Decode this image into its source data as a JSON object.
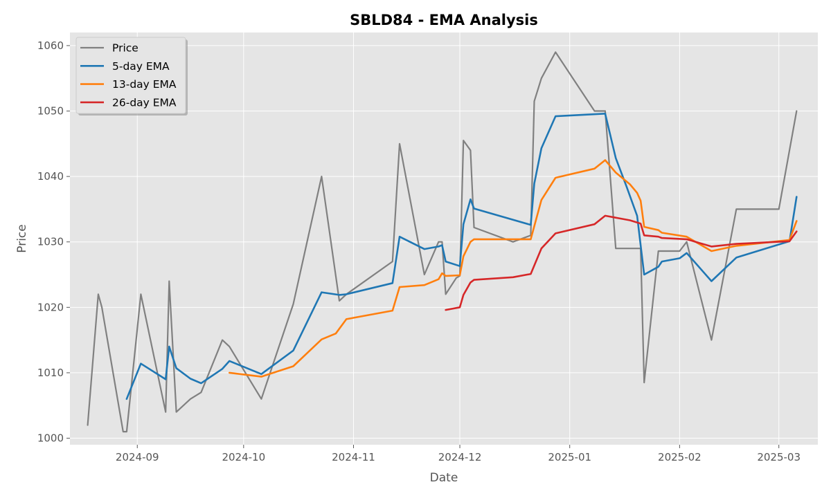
{
  "chart_data": {
    "type": "line",
    "title": "SBLD84 - EMA Analysis",
    "xlabel": "Date",
    "ylabel": "Price",
    "x_range": [
      "2024-08-13",
      "2025-03-12"
    ],
    "ylim": [
      999,
      1062
    ],
    "grid": true,
    "legend_position": "top-left",
    "x_ticks": [
      "2024-09-01",
      "2024-10-01",
      "2024-11-01",
      "2024-12-01",
      "2025-01-01",
      "2025-02-01",
      "2025-03-01"
    ],
    "x_tick_labels": [
      "2024-09",
      "2024-10",
      "2024-11",
      "2024-12",
      "2025-01",
      "2025-02",
      "2025-03"
    ],
    "y_ticks": [
      1000,
      1010,
      1020,
      1030,
      1040,
      1050,
      1060
    ],
    "series": [
      {
        "name": "Price",
        "color": "#808080",
        "points": [
          [
            "2024-08-18",
            1002
          ],
          [
            "2024-08-21",
            1022
          ],
          [
            "2024-08-22",
            1020
          ],
          [
            "2024-08-28",
            1001
          ],
          [
            "2024-08-29",
            1001
          ],
          [
            "2024-09-02",
            1022
          ],
          [
            "2024-09-09",
            1004
          ],
          [
            "2024-09-10",
            1024
          ],
          [
            "2024-09-12",
            1004
          ],
          [
            "2024-09-16",
            1006
          ],
          [
            "2024-09-19",
            1007
          ],
          [
            "2024-09-25",
            1015
          ],
          [
            "2024-09-27",
            1014
          ],
          [
            "2024-10-06",
            1006
          ],
          [
            "2024-10-15",
            1020.5
          ],
          [
            "2024-10-23",
            1040
          ],
          [
            "2024-10-28",
            1021
          ],
          [
            "2024-10-30",
            1022
          ],
          [
            "2024-11-12",
            1027
          ],
          [
            "2024-11-14",
            1045
          ],
          [
            "2024-11-21",
            1025
          ],
          [
            "2024-11-25",
            1030
          ],
          [
            "2024-11-26",
            1030
          ],
          [
            "2024-11-27",
            1022
          ],
          [
            "2024-11-30",
            1024.5
          ],
          [
            "2024-12-01",
            1024.8
          ],
          [
            "2024-12-02",
            1045.5
          ],
          [
            "2024-12-04",
            1044
          ],
          [
            "2024-12-05",
            1032.2
          ],
          [
            "2024-12-16",
            1030
          ],
          [
            "2024-12-21",
            1031
          ],
          [
            "2024-12-22",
            1051.5
          ],
          [
            "2024-12-24",
            1055
          ],
          [
            "2024-12-28",
            1059
          ],
          [
            "2025-01-08",
            1050
          ],
          [
            "2025-01-11",
            1050
          ],
          [
            "2025-01-14",
            1029
          ],
          [
            "2025-01-21",
            1029
          ],
          [
            "2025-01-22",
            1008.5
          ],
          [
            "2025-01-26",
            1028.6
          ],
          [
            "2025-02-01",
            1028.6
          ],
          [
            "2025-02-03",
            1030
          ],
          [
            "2025-02-10",
            1015
          ],
          [
            "2025-02-17",
            1035
          ],
          [
            "2025-03-01",
            1035
          ],
          [
            "2025-03-06",
            1050
          ]
        ]
      },
      {
        "name": "5-day EMA",
        "color": "#1f77b4",
        "points": [
          [
            "2024-08-29",
            1006
          ],
          [
            "2024-09-02",
            1011.4
          ],
          [
            "2024-09-09",
            1009
          ],
          [
            "2024-09-10",
            1014
          ],
          [
            "2024-09-12",
            1010.7
          ],
          [
            "2024-09-16",
            1009.1
          ],
          [
            "2024-09-19",
            1008.4
          ],
          [
            "2024-09-25",
            1010.6
          ],
          [
            "2024-09-27",
            1011.8
          ],
          [
            "2024-10-06",
            1009.8
          ],
          [
            "2024-10-15",
            1013.4
          ],
          [
            "2024-10-23",
            1022.3
          ],
          [
            "2024-10-28",
            1021.9
          ],
          [
            "2024-10-30",
            1022
          ],
          [
            "2024-11-12",
            1023.7
          ],
          [
            "2024-11-14",
            1030.8
          ],
          [
            "2024-11-21",
            1028.9
          ],
          [
            "2024-11-25",
            1029.3
          ],
          [
            "2024-11-26",
            1029.5
          ],
          [
            "2024-11-27",
            1027
          ],
          [
            "2024-12-01",
            1026.3
          ],
          [
            "2024-12-02",
            1032.7
          ],
          [
            "2024-12-04",
            1036.5
          ],
          [
            "2024-12-05",
            1035.1
          ],
          [
            "2024-12-21",
            1032.6
          ],
          [
            "2024-12-22",
            1038.9
          ],
          [
            "2024-12-24",
            1044.3
          ],
          [
            "2024-12-28",
            1049.2
          ],
          [
            "2025-01-11",
            1049.6
          ],
          [
            "2025-01-14",
            1042.8
          ],
          [
            "2025-01-17",
            1038.5
          ],
          [
            "2025-01-20",
            1034
          ],
          [
            "2025-01-22",
            1025
          ],
          [
            "2025-01-26",
            1026.2
          ],
          [
            "2025-01-27",
            1027
          ],
          [
            "2025-02-01",
            1027.5
          ],
          [
            "2025-02-03",
            1028.3
          ],
          [
            "2025-02-10",
            1024
          ],
          [
            "2025-02-17",
            1027.6
          ],
          [
            "2025-03-04",
            1030.1
          ],
          [
            "2025-03-06",
            1036.9
          ]
        ]
      },
      {
        "name": "13-day EMA",
        "color": "#ff7f0e",
        "points": [
          [
            "2024-09-27",
            1010
          ],
          [
            "2024-10-06",
            1009.4
          ],
          [
            "2024-10-15",
            1011
          ],
          [
            "2024-10-23",
            1015.1
          ],
          [
            "2024-10-27",
            1016
          ],
          [
            "2024-10-30",
            1018.2
          ],
          [
            "2024-11-12",
            1019.5
          ],
          [
            "2024-11-14",
            1023.1
          ],
          [
            "2024-11-21",
            1023.4
          ],
          [
            "2024-11-25",
            1024.3
          ],
          [
            "2024-11-26",
            1025.2
          ],
          [
            "2024-11-27",
            1024.8
          ],
          [
            "2024-12-01",
            1024.9
          ],
          [
            "2024-12-02",
            1027.8
          ],
          [
            "2024-12-04",
            1030
          ],
          [
            "2024-12-05",
            1030.4
          ],
          [
            "2024-12-21",
            1030.4
          ],
          [
            "2024-12-24",
            1036.4
          ],
          [
            "2024-12-28",
            1039.8
          ],
          [
            "2025-01-08",
            1041.2
          ],
          [
            "2025-01-11",
            1042.5
          ],
          [
            "2025-01-14",
            1040.6
          ],
          [
            "2025-01-18",
            1038.8
          ],
          [
            "2025-01-20",
            1037.5
          ],
          [
            "2025-01-21",
            1036.3
          ],
          [
            "2025-01-22",
            1032.3
          ],
          [
            "2025-01-26",
            1031.8
          ],
          [
            "2025-01-27",
            1031.4
          ],
          [
            "2025-02-03",
            1030.8
          ],
          [
            "2025-02-10",
            1028.6
          ],
          [
            "2025-02-17",
            1029.4
          ],
          [
            "2025-03-04",
            1030.3
          ],
          [
            "2025-03-06",
            1033.2
          ]
        ]
      },
      {
        "name": "26-day EMA",
        "color": "#d62728",
        "points": [
          [
            "2024-11-27",
            1019.6
          ],
          [
            "2024-12-01",
            1020
          ],
          [
            "2024-12-02",
            1021.9
          ],
          [
            "2024-12-04",
            1023.8
          ],
          [
            "2024-12-05",
            1024.2
          ],
          [
            "2024-12-16",
            1024.6
          ],
          [
            "2024-12-21",
            1025.1
          ],
          [
            "2024-12-24",
            1029
          ],
          [
            "2024-12-28",
            1031.3
          ],
          [
            "2025-01-08",
            1032.7
          ],
          [
            "2025-01-11",
            1034
          ],
          [
            "2025-01-18",
            1033.3
          ],
          [
            "2025-01-21",
            1032.8
          ],
          [
            "2025-01-22",
            1031
          ],
          [
            "2025-01-26",
            1030.8
          ],
          [
            "2025-01-27",
            1030.6
          ],
          [
            "2025-02-03",
            1030.4
          ],
          [
            "2025-02-10",
            1029.3
          ],
          [
            "2025-02-17",
            1029.7
          ],
          [
            "2025-03-04",
            1030.1
          ],
          [
            "2025-03-06",
            1031.6
          ]
        ]
      }
    ]
  }
}
